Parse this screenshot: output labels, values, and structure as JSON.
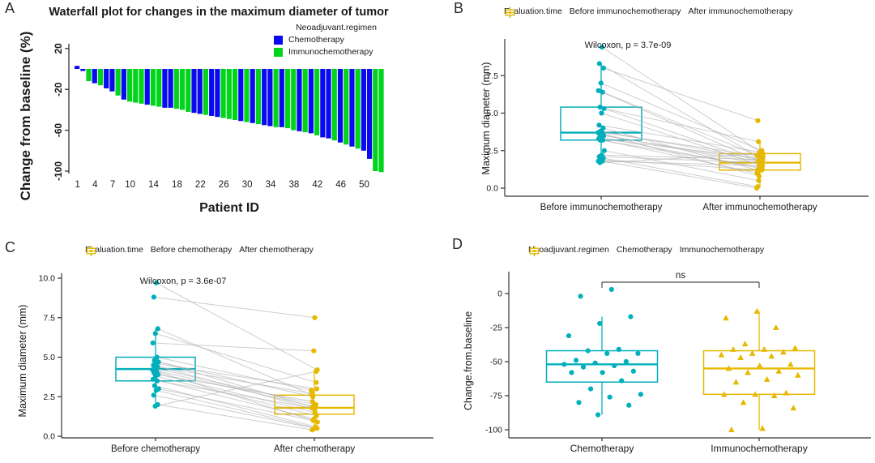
{
  "colors": {
    "chemo_blue": "#0a0af0",
    "immuno_green": "#00d51c",
    "teal": "#00afbb",
    "gold": "#e7b800",
    "pair_line": "#b3b3b3",
    "axis": "#333333",
    "bracket": "#4d4d4d"
  },
  "chart_data": [
    {
      "panel_label": "A",
      "type": "bar",
      "title": "Waterfall plot for changes in the maximum diameter of tumor",
      "xlabel": "Patient ID",
      "ylabel": "Change from baseline (%)",
      "legend_title": "Neoadjuvant.regimen",
      "legend": [
        {
          "label": "Chemotherapy",
          "color": "#0a0af0"
        },
        {
          "label": "Immunochemotherapy",
          "color": "#00d51c"
        }
      ],
      "ylim": [
        25,
        -105
      ],
      "yticks": [
        {
          "v": 20,
          "label": "20"
        },
        {
          "v": -20,
          "label": "-20"
        },
        {
          "v": -60,
          "label": "-60"
        },
        {
          "v": -100,
          "label": "-100"
        }
      ],
      "xticks": [
        {
          "v": 1,
          "label": "1"
        },
        {
          "v": 4,
          "label": "4"
        },
        {
          "v": 7,
          "label": "7"
        },
        {
          "v": 10,
          "label": "10"
        },
        {
          "v": 14,
          "label": "14"
        },
        {
          "v": 18,
          "label": "18"
        },
        {
          "v": 22,
          "label": "22"
        },
        {
          "v": 26,
          "label": "26"
        },
        {
          "v": 30,
          "label": "30"
        },
        {
          "v": 34,
          "label": "34"
        },
        {
          "v": 38,
          "label": "38"
        },
        {
          "v": 42,
          "label": "42"
        },
        {
          "v": 46,
          "label": "46"
        },
        {
          "v": 50,
          "label": "50"
        }
      ],
      "bars": [
        {
          "value": 3,
          "group": "Chemotherapy"
        },
        {
          "value": -2,
          "group": "Chemotherapy"
        },
        {
          "value": -12,
          "group": "Immunochemotherapy"
        },
        {
          "value": -14,
          "group": "Chemotherapy"
        },
        {
          "value": -16,
          "group": "Immunochemotherapy"
        },
        {
          "value": -19,
          "group": "Chemotherapy"
        },
        {
          "value": -22,
          "group": "Chemotherapy"
        },
        {
          "value": -26,
          "group": "Immunochemotherapy"
        },
        {
          "value": -30,
          "group": "Chemotherapy"
        },
        {
          "value": -32,
          "group": "Immunochemotherapy"
        },
        {
          "value": -33,
          "group": "Immunochemotherapy"
        },
        {
          "value": -34,
          "group": "Immunochemotherapy"
        },
        {
          "value": -35,
          "group": "Chemotherapy"
        },
        {
          "value": -36,
          "group": "Immunochemotherapy"
        },
        {
          "value": -37,
          "group": "Immunochemotherapy"
        },
        {
          "value": -38,
          "group": "Chemotherapy"
        },
        {
          "value": -38,
          "group": "Chemotherapy"
        },
        {
          "value": -39,
          "group": "Immunochemotherapy"
        },
        {
          "value": -40,
          "group": "Immunochemotherapy"
        },
        {
          "value": -42,
          "group": "Immunochemotherapy"
        },
        {
          "value": -43,
          "group": "Chemotherapy"
        },
        {
          "value": -44,
          "group": "Chemotherapy"
        },
        {
          "value": -45,
          "group": "Immunochemotherapy"
        },
        {
          "value": -46,
          "group": "Chemotherapy"
        },
        {
          "value": -47,
          "group": "Chemotherapy"
        },
        {
          "value": -48,
          "group": "Immunochemotherapy"
        },
        {
          "value": -49,
          "group": "Immunochemotherapy"
        },
        {
          "value": -50,
          "group": "Immunochemotherapy"
        },
        {
          "value": -51,
          "group": "Chemotherapy"
        },
        {
          "value": -52,
          "group": "Immunochemotherapy"
        },
        {
          "value": -53,
          "group": "Chemotherapy"
        },
        {
          "value": -54,
          "group": "Immunochemotherapy"
        },
        {
          "value": -55,
          "group": "Chemotherapy"
        },
        {
          "value": -56,
          "group": "Chemotherapy"
        },
        {
          "value": -57,
          "group": "Immunochemotherapy"
        },
        {
          "value": -57,
          "group": "Chemotherapy"
        },
        {
          "value": -58,
          "group": "Immunochemotherapy"
        },
        {
          "value": -60,
          "group": "Immunochemotherapy"
        },
        {
          "value": -61,
          "group": "Chemotherapy"
        },
        {
          "value": -62,
          "group": "Immunochemotherapy"
        },
        {
          "value": -63,
          "group": "Chemotherapy"
        },
        {
          "value": -65,
          "group": "Immunochemotherapy"
        },
        {
          "value": -67,
          "group": "Chemotherapy"
        },
        {
          "value": -68,
          "group": "Chemotherapy"
        },
        {
          "value": -70,
          "group": "Immunochemotherapy"
        },
        {
          "value": -72,
          "group": "Chemotherapy"
        },
        {
          "value": -74,
          "group": "Immunochemotherapy"
        },
        {
          "value": -76,
          "group": "Chemotherapy"
        },
        {
          "value": -78,
          "group": "Immunochemotherapy"
        },
        {
          "value": -80,
          "group": "Chemotherapy"
        },
        {
          "value": -88,
          "group": "Chemotherapy"
        },
        {
          "value": -100,
          "group": "Immunochemotherapy"
        },
        {
          "value": -101,
          "group": "Immunochemotherapy"
        }
      ]
    },
    {
      "panel_label": "B",
      "type": "paired-box",
      "legend_title": "Evaluation.time",
      "annotation": "Wilcoxon, p = 3.7e-09",
      "ylabel": "Maximum diameter (mm)",
      "ylim": [
        0,
        9.7
      ],
      "yticks": [
        {
          "v": 0,
          "label": "0.0"
        },
        {
          "v": 2.5,
          "label": "2.5"
        },
        {
          "v": 5,
          "label": "5.0"
        },
        {
          "v": 7.5,
          "label": "7.5"
        }
      ],
      "groups": [
        {
          "label": "Before immunochemotherapy",
          "color": "#00afbb",
          "marker": "circle"
        },
        {
          "label": "After immunochemotherapy",
          "color": "#e7b800",
          "marker": "circle"
        }
      ],
      "boxes": [
        {
          "q1": 3.2,
          "median": 3.7,
          "q3": 5.4,
          "whisker_low": 1.7,
          "whisker_high": 8.3
        },
        {
          "q1": 1.2,
          "median": 1.7,
          "q3": 2.3,
          "whisker_low": 0.0,
          "whisker_high": 3.1
        }
      ],
      "pairs": [
        [
          9.4,
          2.3
        ],
        [
          8.3,
          2.0
        ],
        [
          8.0,
          4.5
        ],
        [
          7.0,
          2.5
        ],
        [
          6.5,
          1.8
        ],
        [
          6.4,
          2.2
        ],
        [
          5.4,
          1.7
        ],
        [
          5.3,
          3.1
        ],
        [
          5.0,
          1.5
        ],
        [
          4.2,
          2.4
        ],
        [
          4.0,
          1.2
        ],
        [
          3.8,
          1.9
        ],
        [
          3.7,
          0.8
        ],
        [
          3.7,
          2.1
        ],
        [
          3.6,
          1.6
        ],
        [
          3.5,
          1.8
        ],
        [
          3.4,
          1.3
        ],
        [
          3.3,
          2.0
        ],
        [
          3.2,
          1.0
        ],
        [
          3.2,
          1.4
        ],
        [
          2.5,
          0.5
        ],
        [
          2.2,
          1.9
        ],
        [
          2.1,
          1.7
        ],
        [
          2.0,
          0.1
        ],
        [
          1.9,
          1.2
        ],
        [
          1.8,
          1.5
        ],
        [
          1.8,
          0.0
        ],
        [
          1.7,
          2.3
        ]
      ]
    },
    {
      "panel_label": "C",
      "type": "paired-box",
      "legend_title": "Evaluation.time",
      "annotation": "Wilcoxon, p = 3.6e-07",
      "ylabel": "Maximum diameter (mm)",
      "ylim": [
        0,
        10
      ],
      "yticks": [
        {
          "v": 0,
          "label": "0.0"
        },
        {
          "v": 2.5,
          "label": "2.5"
        },
        {
          "v": 5,
          "label": "5.0"
        },
        {
          "v": 7.5,
          "label": "7.5"
        },
        {
          "v": 10,
          "label": "10.0"
        }
      ],
      "groups": [
        {
          "label": "Before chemotherapy",
          "color": "#00afbb",
          "marker": "circle"
        },
        {
          "label": "After chemotherapy",
          "color": "#e7b800",
          "marker": "circle"
        }
      ],
      "boxes": [
        {
          "q1": 3.5,
          "median": 4.25,
          "q3": 5.0,
          "whisker_low": 1.9,
          "whisker_high": 6.8
        },
        {
          "q1": 1.4,
          "median": 1.8,
          "q3": 2.6,
          "whisker_low": 0.4,
          "whisker_high": 4.2
        }
      ],
      "pairs": [
        [
          9.7,
          4.2
        ],
        [
          8.8,
          7.5
        ],
        [
          6.8,
          2.6
        ],
        [
          6.5,
          3.4
        ],
        [
          5.9,
          5.4
        ],
        [
          5.0,
          2.9
        ],
        [
          4.8,
          1.8
        ],
        [
          4.7,
          2.5
        ],
        [
          4.6,
          3.0
        ],
        [
          4.5,
          1.7
        ],
        [
          4.4,
          2.7
        ],
        [
          4.3,
          2.0
        ],
        [
          4.2,
          1.9
        ],
        [
          4.1,
          0.9
        ],
        [
          4.0,
          1.5
        ],
        [
          3.9,
          2.2
        ],
        [
          3.8,
          1.3
        ],
        [
          3.6,
          1.1
        ],
        [
          3.5,
          1.8
        ],
        [
          3.2,
          0.6
        ],
        [
          3.0,
          1.0
        ],
        [
          2.9,
          0.5
        ],
        [
          2.6,
          0.5
        ],
        [
          2.0,
          0.4
        ],
        [
          1.9,
          4.1
        ]
      ]
    },
    {
      "panel_label": "D",
      "type": "box-jitter",
      "legend_title": "Neoadjuvant.regimen",
      "annotation": "ns",
      "ylabel": "Change.from.baseline",
      "ylim": [
        8,
        -105
      ],
      "yticks": [
        {
          "v": 0,
          "label": "0"
        },
        {
          "v": -25,
          "label": "-25"
        },
        {
          "v": -50,
          "label": "-50"
        },
        {
          "v": -75,
          "label": "-75"
        },
        {
          "v": -100,
          "label": "-100"
        }
      ],
      "groups": [
        {
          "label": "Chemotherapy",
          "color": "#00afbb",
          "marker": "circle",
          "box": {
            "q1": -65,
            "median": -52,
            "q3": -42,
            "whisker_low": -89,
            "whisker_high": -17
          },
          "points": [
            3,
            -2,
            -17,
            -22,
            -31,
            -41,
            -42,
            -44,
            -44,
            -49,
            -50,
            -51,
            -52,
            -53,
            -54,
            -57,
            -58,
            -58,
            -64,
            -70,
            -74,
            -76,
            -80,
            -82,
            -89
          ]
        },
        {
          "label": "Immunochemotherapy",
          "color": "#e7b800",
          "marker": "triangle",
          "box": {
            "q1": -74,
            "median": -55,
            "q3": -42,
            "whisker_low": -100,
            "whisker_high": -13
          },
          "points": [
            -13,
            -18,
            -25,
            -37,
            -40,
            -41,
            -41,
            -43,
            -44,
            -45,
            -46,
            -47,
            -52,
            -53,
            -55,
            -57,
            -58,
            -60,
            -63,
            -65,
            -73,
            -74,
            -74,
            -75,
            -80,
            -84,
            -99,
            -100
          ]
        }
      ]
    }
  ]
}
